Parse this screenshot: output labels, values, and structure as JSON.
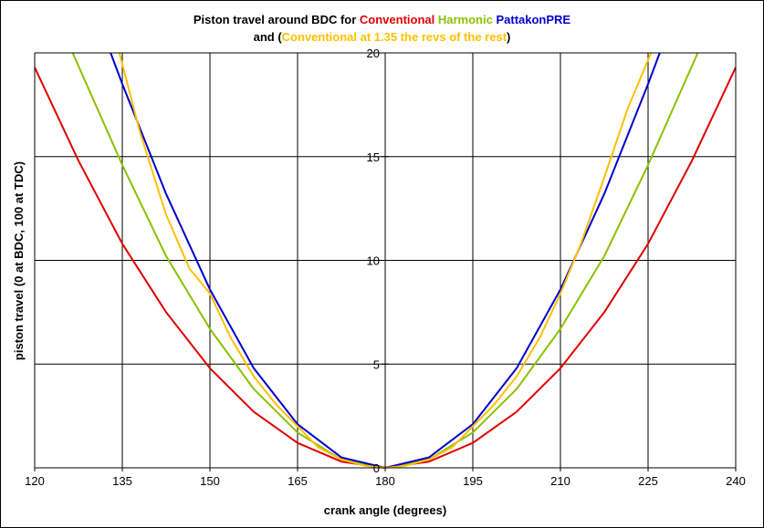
{
  "title": {
    "line1_prefix": "Piston travel around BDC for ",
    "line1_conventional": "Conventional",
    "line1_harmonic": "Harmonic",
    "line1_pattakon": "PattakonPRE",
    "line2_prefix": "and (",
    "line2_highlight": "Conventional at 1.35 the revs of the rest",
    "line2_suffix": ")"
  },
  "colors": {
    "conventional": "#e00000",
    "harmonic": "#8cc000",
    "pattakon": "#0000cc",
    "conventional_135": "#ffc000",
    "grid": "#000000"
  },
  "chart_data": {
    "type": "line",
    "title": "Piston travel around BDC for Conventional Harmonic PattakonPRE and (Conventional at 1.35 the revs of the rest)",
    "xlabel": "crank angle (degrees)",
    "ylabel": "piston travel (0 at BDC, 100 at TDC)",
    "xlim": [
      120,
      240
    ],
    "ylim": [
      0,
      20
    ],
    "x_ticks": [
      "120",
      "135",
      "150",
      "165",
      "180",
      "195",
      "210",
      "225",
      "240"
    ],
    "y_ticks": [
      "5",
      "10",
      "15",
      "20"
    ],
    "y_zero_label": "0",
    "grid": true,
    "legend": "none",
    "series": [
      {
        "name": "Conventional",
        "color_key": "conventional",
        "x": [
          120,
          127.5,
          135,
          142.5,
          150,
          157.5,
          165,
          172.5,
          180,
          187.5,
          195,
          202.5,
          210,
          217.5,
          225,
          232.5,
          240
        ],
        "y": [
          19.3,
          14.8,
          10.8,
          7.5,
          4.8,
          2.7,
          1.2,
          0.3,
          0,
          0.3,
          1.2,
          2.7,
          4.8,
          7.5,
          10.8,
          14.8,
          19.3
        ]
      },
      {
        "name": "Harmonic",
        "color_key": "harmonic",
        "x": [
          126.5,
          135,
          142.5,
          150,
          157.5,
          165,
          172.5,
          180,
          187.5,
          195,
          202.5,
          210,
          217.5,
          225,
          233.5
        ],
        "y": [
          20,
          14.6,
          10.2,
          6.7,
          3.8,
          1.7,
          0.4,
          0,
          0.4,
          1.7,
          3.8,
          6.7,
          10.2,
          14.6,
          20
        ]
      },
      {
        "name": "PattakonPRE",
        "color_key": "pattakon",
        "x": [
          133,
          135,
          142.5,
          150,
          157.5,
          165,
          172.5,
          180,
          187.5,
          195,
          202.5,
          210,
          217.5,
          225,
          227
        ],
        "y": [
          20,
          18.5,
          13.2,
          8.6,
          4.8,
          2.1,
          0.5,
          0,
          0.5,
          2.1,
          4.8,
          8.6,
          13.2,
          18.5,
          20
        ]
      },
      {
        "name": "Conventional at 1.35 the revs of the rest",
        "color_key": "conventional_135",
        "x": [
          134.5,
          138,
          142.5,
          146.5,
          150,
          153.5,
          157.5,
          161.5,
          165,
          168.5,
          172.5,
          176.5,
          180,
          183.5,
          187.5,
          191.5,
          195,
          198.5,
          202.5,
          206.5,
          210,
          213.5,
          217.5,
          221.5,
          225.5
        ],
        "y": [
          20,
          16.2,
          12.2,
          9.6,
          8.4,
          6.3,
          4.4,
          3.0,
          2.0,
          1.0,
          0.4,
          0.1,
          0,
          0.1,
          0.4,
          1.0,
          2.0,
          3.0,
          4.4,
          6.3,
          8.4,
          10.8,
          14.0,
          17.3,
          20
        ]
      }
    ]
  }
}
